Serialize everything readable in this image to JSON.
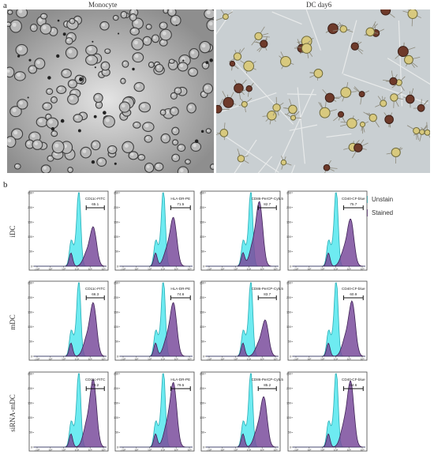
{
  "panel_a": {
    "label": "a",
    "images": [
      {
        "title": "Monocyte"
      },
      {
        "title": "DC day6"
      }
    ]
  },
  "panel_b": {
    "label": "b",
    "legend": [
      {
        "label": "Unstain",
        "color": "#55e8ee"
      },
      {
        "label": "Stained",
        "color": "#8a5aa8"
      }
    ],
    "rows": [
      {
        "label": "iDC"
      },
      {
        "label": "mDC"
      },
      {
        "label": "siRNA-mDC"
      }
    ],
    "columns": [
      {
        "marker": "CD11c-FITC"
      },
      {
        "marker": "HLA-DR-PE"
      },
      {
        "marker": "CD86-PerCP-Cy5.5"
      },
      {
        "marker": "CD40-CF-blue"
      }
    ],
    "y_tick_labels": [
      "0",
      "50",
      "100",
      "150",
      "200",
      "250"
    ],
    "x_tick_labels": [
      "-10²",
      "10²",
      "10³",
      "10⁴",
      "10⁵",
      "10⁶"
    ]
  },
  "chart_data": {
    "type": "histogram",
    "x_scale": "log",
    "y_range": [
      0,
      250
    ],
    "cells": [
      {
        "row": "iDC",
        "marker": "CD11c-FITC",
        "gate_percent": "65.1",
        "unstain_peak_log": 4.3,
        "stained_peak_log": 5.3,
        "stained_peak_count": 125
      },
      {
        "row": "iDC",
        "marker": "HLA-DR-PE",
        "gate_percent": "71.5",
        "unstain_peak_log": 4.2,
        "stained_peak_log": 4.9,
        "stained_peak_count": 155
      },
      {
        "row": "iDC",
        "marker": "CD86-PerCP-Cy5.5",
        "gate_percent": "82.7",
        "unstain_peak_log": 4.3,
        "stained_peak_log": 4.9,
        "stained_peak_count": 205
      },
      {
        "row": "iDC",
        "marker": "CD40-CF-blue",
        "gate_percent": "75.7",
        "unstain_peak_log": 4.2,
        "stained_peak_log": 5.2,
        "stained_peak_count": 150
      },
      {
        "row": "mDC",
        "marker": "CD11c-FITC",
        "gate_percent": "66.3",
        "unstain_peak_log": 4.3,
        "stained_peak_log": 5.3,
        "stained_peak_count": 170
      },
      {
        "row": "mDC",
        "marker": "HLA-DR-PE",
        "gate_percent": "74.6",
        "unstain_peak_log": 4.2,
        "stained_peak_log": 4.9,
        "stained_peak_count": 170
      },
      {
        "row": "mDC",
        "marker": "CD86-PerCP-Cy5.5",
        "gate_percent": "83.7",
        "unstain_peak_log": 4.3,
        "stained_peak_log": 5.3,
        "stained_peak_count": 115
      },
      {
        "row": "mDC",
        "marker": "CD40-CF-blue",
        "gate_percent": "60.9",
        "unstain_peak_log": 4.2,
        "stained_peak_log": 5.3,
        "stained_peak_count": 175
      },
      {
        "row": "siRNA-mDC",
        "marker": "CD11c-FITC",
        "gate_percent": "73.2",
        "unstain_peak_log": 4.3,
        "stained_peak_log": 5.3,
        "stained_peak_count": 215
      },
      {
        "row": "siRNA-mDC",
        "marker": "HLA-DR-PE",
        "gate_percent": "79.5",
        "unstain_peak_log": 4.2,
        "stained_peak_log": 4.9,
        "stained_peak_count": 205
      },
      {
        "row": "siRNA-mDC",
        "marker": "CD86-PerCP-Cy5.5",
        "gate_percent": "85.2",
        "unstain_peak_log": 4.3,
        "stained_peak_log": 5.2,
        "stained_peak_count": 160
      },
      {
        "row": "siRNA-mDC",
        "marker": "CD40-CF-blue",
        "gate_percent": "64.6",
        "unstain_peak_log": 4.2,
        "stained_peak_log": 5.2,
        "stained_peak_count": 210
      }
    ]
  }
}
